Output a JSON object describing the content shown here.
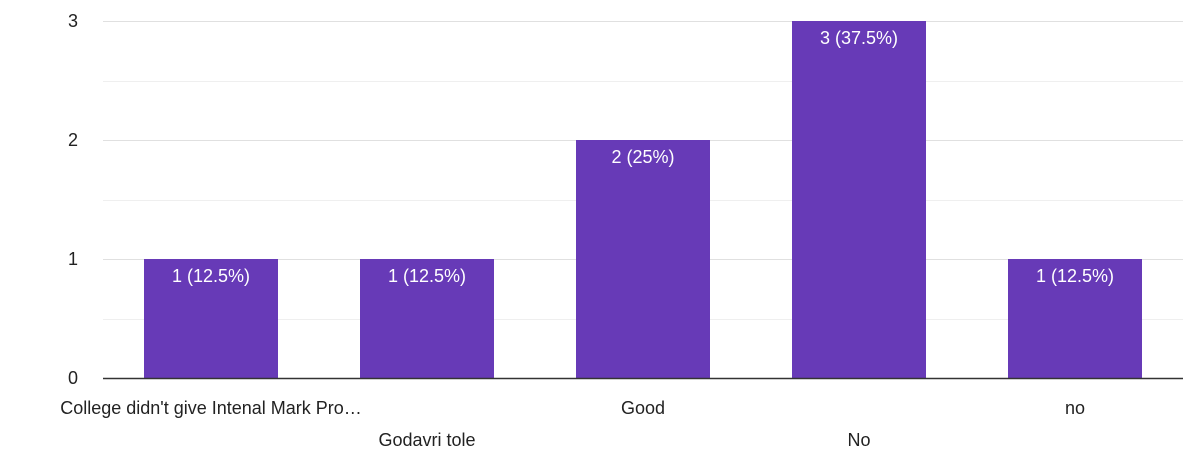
{
  "chart_data": {
    "type": "bar",
    "categories": [
      "College didn't give Intenal Mark Pro…",
      "Godavri tole",
      "Good",
      "No",
      "no"
    ],
    "values": [
      1,
      1,
      2,
      3,
      1
    ],
    "data_labels": [
      "1 (12.5%)",
      "1 (12.5%)",
      "2 (25%)",
      "3 (37.5%)",
      "1 (12.5%)"
    ],
    "y_ticks": [
      "0",
      "1",
      "2",
      "3"
    ],
    "ylim": [
      0,
      3
    ],
    "grid": true,
    "bar_color": "#673ab7",
    "grid_color": "#e0e0e0",
    "axis_color": "#333333"
  }
}
